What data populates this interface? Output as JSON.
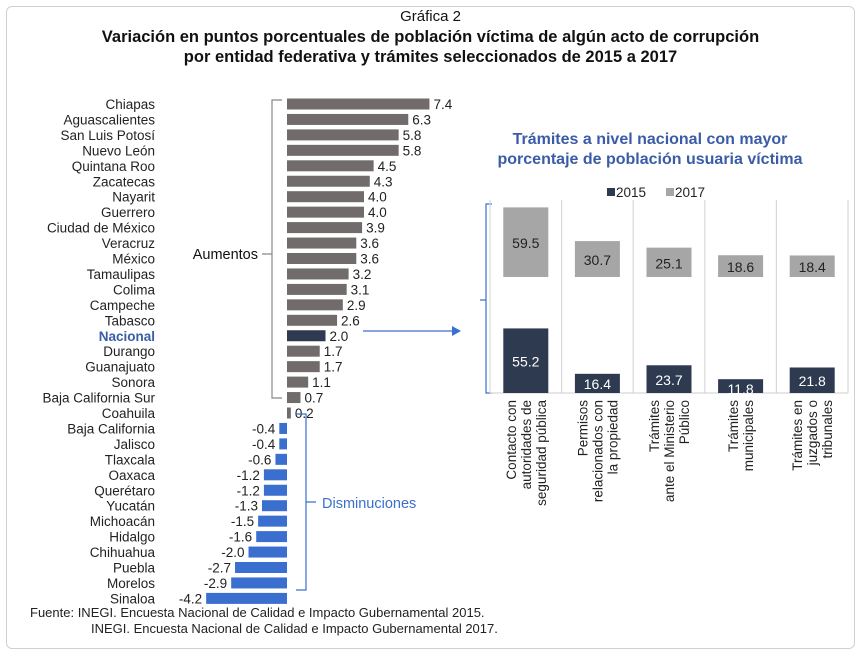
{
  "header": {
    "chart_number": "Gráfica 2",
    "title_line1": "Variación en puntos porcentuales de población víctima de algún acto de corrupción",
    "title_line2": "por entidad federativa y trámites seleccionados de 2015 a 2017"
  },
  "footer": {
    "source_line1": "Fuente: INEGI. Encuesta Nacional de Calidad e Impacto Gubernamental 2015.",
    "source_line2": "INEGI. Encuesta Nacional de Calidad e Impacto Gubernamental 2017."
  },
  "colors": {
    "increase": "#716c6b",
    "national": "#2e3a50",
    "decrease": "#3a6fd0",
    "bar2015": "#2e3a50",
    "bar2017": "#a6a6a6",
    "accent": "#3a5ca8"
  },
  "chart_data": [
    {
      "type": "bar",
      "orientation": "horizontal",
      "title": "",
      "annotations": {
        "increase": "Aumentos",
        "decrease": "Disminuciones"
      },
      "categories": [
        "Chiapas",
        "Aguascalientes",
        "San Luis Potosí",
        "Nuevo León",
        "Quintana Roo",
        "Zacatecas",
        "Nayarit",
        "Guerrero",
        "Ciudad de México",
        "Veracruz",
        "México",
        "Tamaulipas",
        "Colima",
        "Campeche",
        "Tabasco",
        "Nacional",
        "Durango",
        "Guanajuato",
        "Sonora",
        "Baja California Sur",
        "Coahuila",
        "Baja California",
        "Jalisco",
        "Tlaxcala",
        "Oaxaca",
        "Querétaro",
        "Yucatán",
        "Michoacán",
        "Hidalgo",
        "Chihuahua",
        "Puebla",
        "Morelos",
        "Sinaloa"
      ],
      "values": [
        7.4,
        6.3,
        5.8,
        5.8,
        4.5,
        4.3,
        4.0,
        4.0,
        3.9,
        3.6,
        3.6,
        3.2,
        3.1,
        2.9,
        2.6,
        2.0,
        1.7,
        1.7,
        1.1,
        0.7,
        0.2,
        -0.4,
        -0.4,
        -0.6,
        -1.2,
        -1.2,
        -1.3,
        -1.5,
        -1.6,
        -2.0,
        -2.7,
        -2.9,
        -4.2
      ],
      "highlight": "Nacional"
    },
    {
      "type": "bar",
      "title": "Trámites a nivel nacional con mayor porcentaje de población usuaria víctima",
      "categories": [
        "Contacto con autoridades de seguridad pública",
        "Permisos relacionados con la propiedad",
        "Trámites ante el Ministerio Público",
        "Trámites municipales",
        "Trámites en juzgados o tribunales"
      ],
      "category_lines": [
        [
          "Contacto con",
          "autoridades de",
          "seguridad pública"
        ],
        [
          "Permisos",
          "relacionados con",
          "la propiedad"
        ],
        [
          "Trámites",
          "ante el Ministerio",
          "Público"
        ],
        [
          "Trámites",
          "municipales"
        ],
        [
          "Trámites en",
          "juzgados o",
          "tribunales"
        ]
      ],
      "legend": [
        "2015",
        "2017"
      ],
      "legend_position": "top",
      "series": [
        {
          "name": "2015",
          "values": [
            55.2,
            16.4,
            23.7,
            11.8,
            21.8
          ]
        },
        {
          "name": "2017",
          "values": [
            59.5,
            30.7,
            25.1,
            18.6,
            18.4
          ]
        }
      ]
    }
  ]
}
